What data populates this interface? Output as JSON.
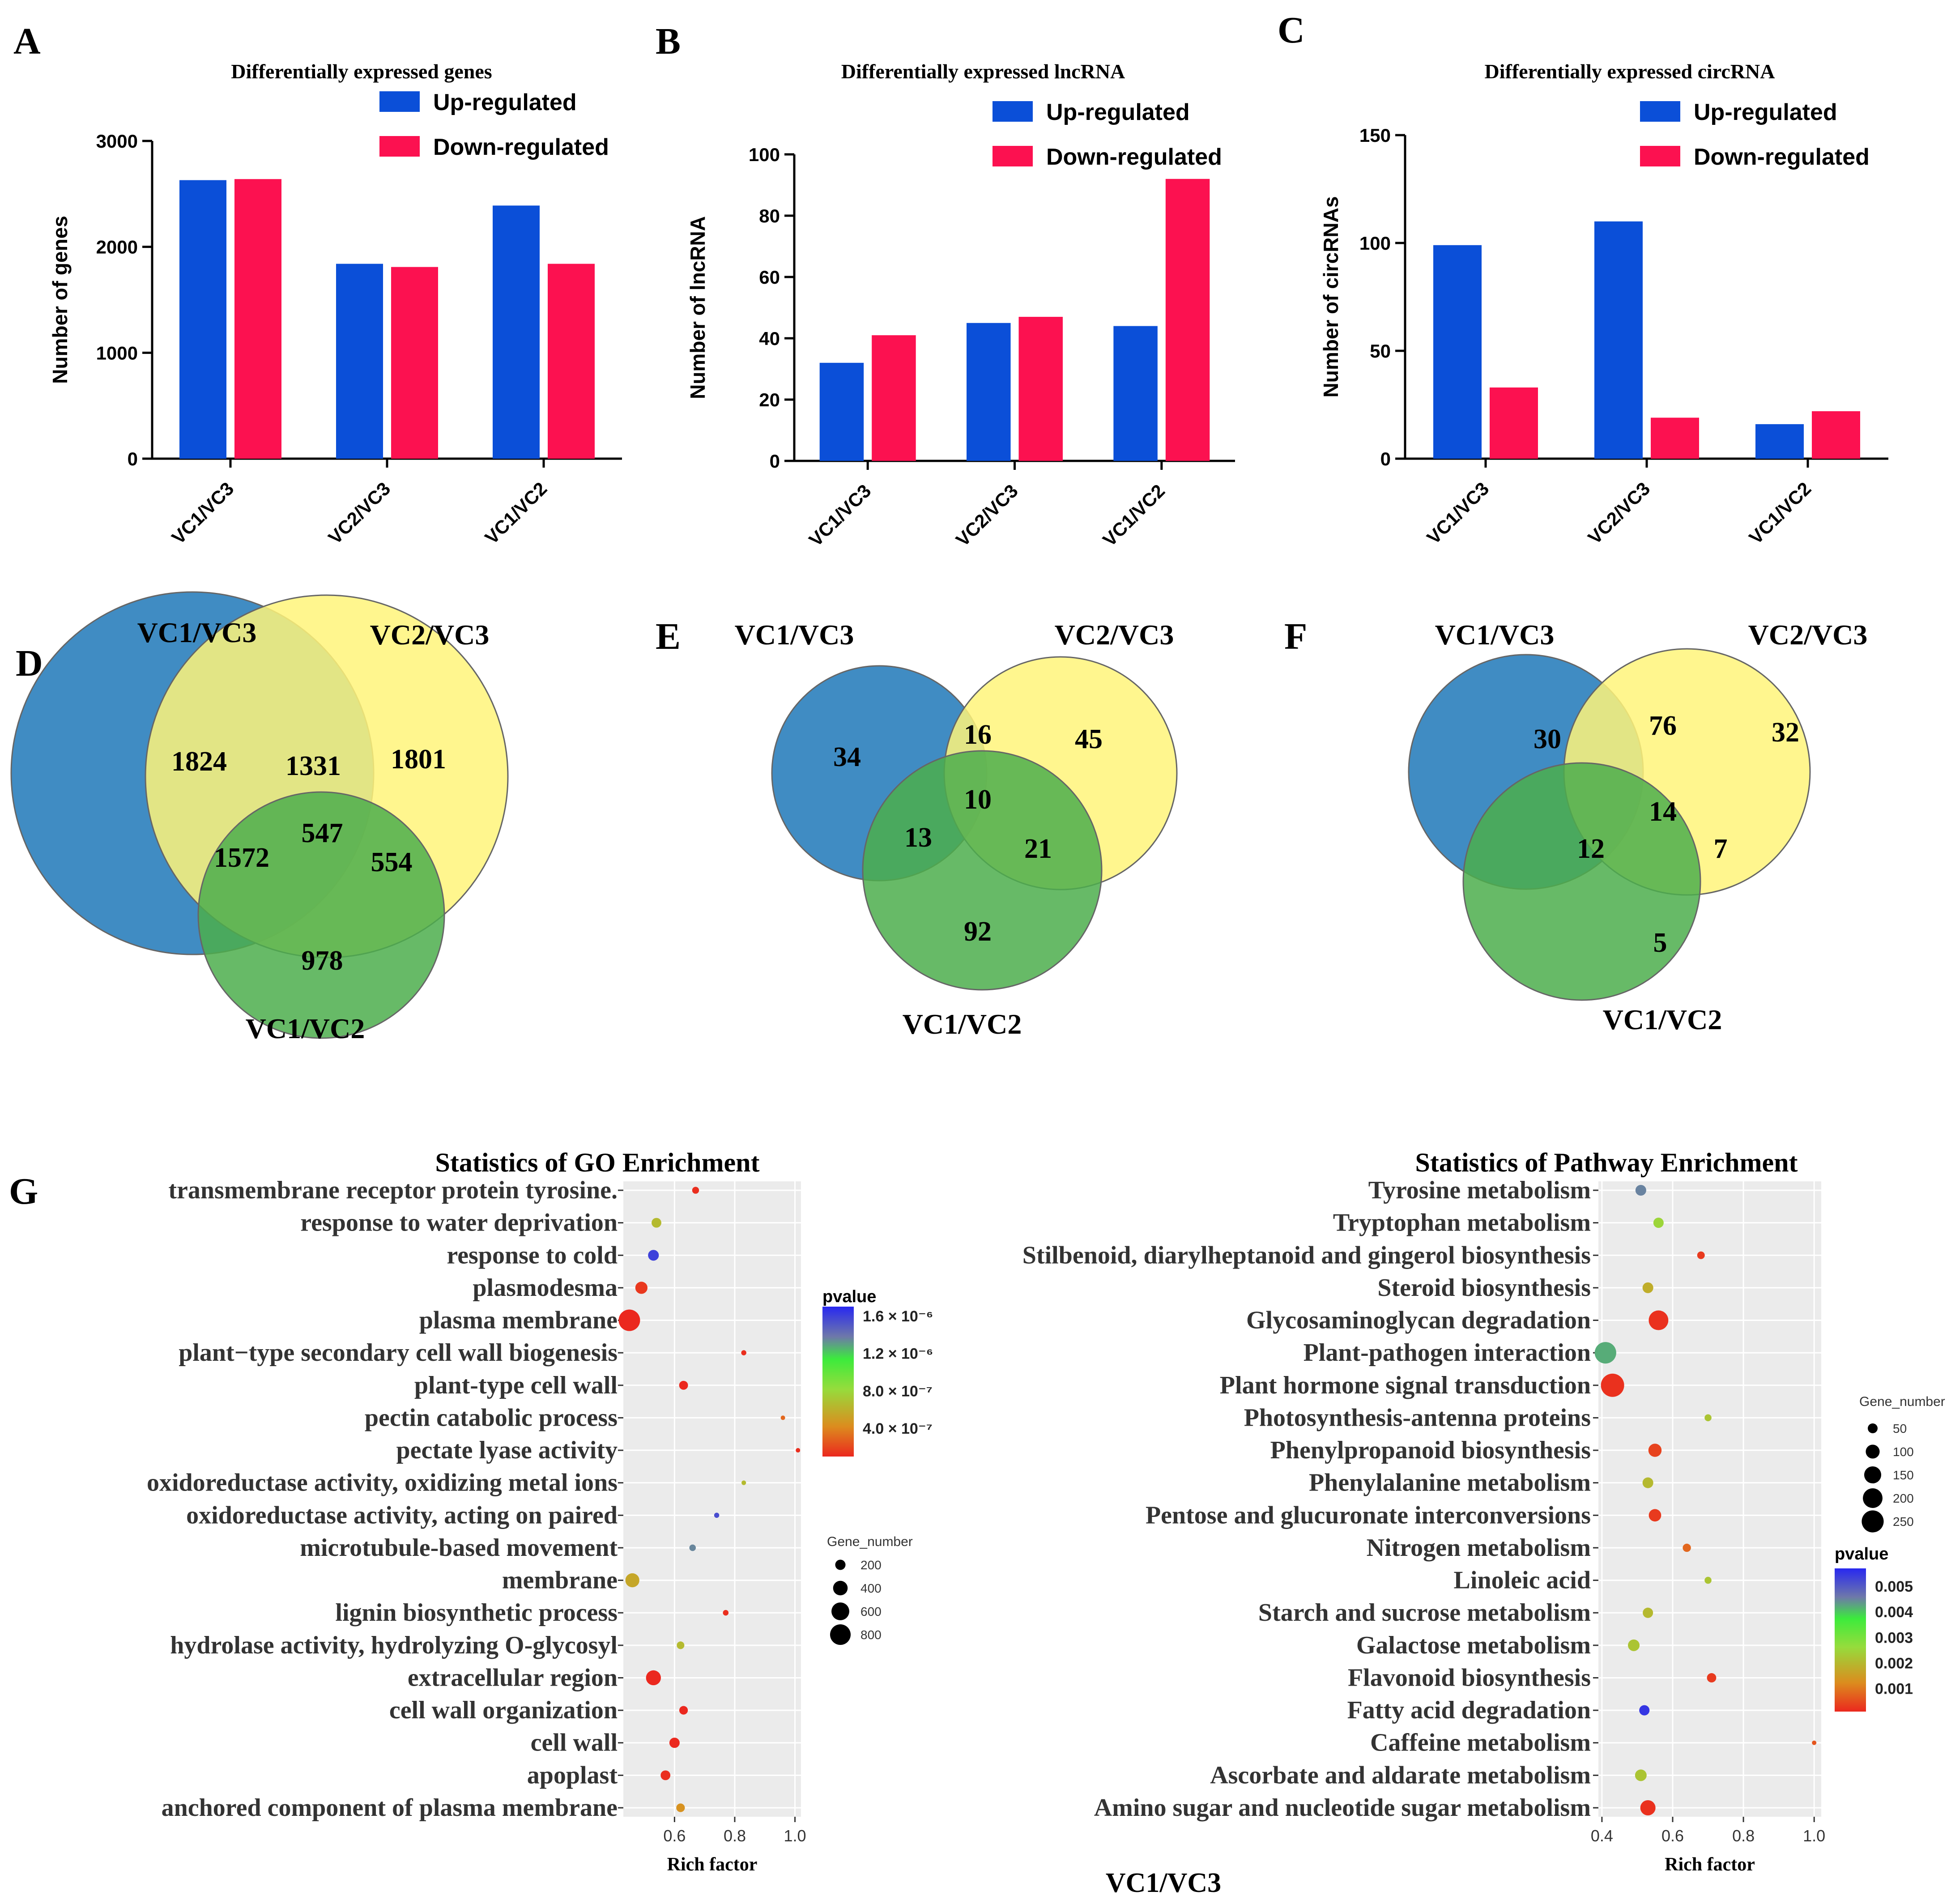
{
  "figure_caption": "VC1/VC3",
  "colors": {
    "up": "#0B4FD8",
    "down": "#FC1150",
    "venn_blue": "#1F78B8",
    "venn_yellow": "#FFF47A",
    "venn_green": "#4CAE4C",
    "panel_bg": "#EBEBEB",
    "grid": "#FFFFFF"
  },
  "chart_data": [
    {
      "panel": "A",
      "type": "bar",
      "title": "Differentially expressed genes",
      "ylabel": "Number of genes",
      "xlabel": "",
      "categories": [
        "VC1/VC3",
        "VC2/VC3",
        "VC1/VC2"
      ],
      "series": [
        {
          "name": "Up-regulated",
          "values": [
            2630,
            1840,
            2390
          ]
        },
        {
          "name": "Down-regulated",
          "values": [
            2640,
            1810,
            1840
          ]
        }
      ],
      "ylim": [
        0,
        3000
      ],
      "yticks": [
        "0",
        "1000",
        "2000",
        "3000"
      ],
      "legend": "top-right"
    },
    {
      "panel": "B",
      "type": "bar",
      "title": "Differentially expressed lncRNA",
      "ylabel": "Number of lncRNA",
      "xlabel": "",
      "categories": [
        "VC1/VC3",
        "VC2/VC3",
        "VC1/VC2"
      ],
      "series": [
        {
          "name": "Up-regulated",
          "values": [
            32,
            45,
            44
          ]
        },
        {
          "name": "Down-regulated",
          "values": [
            41,
            47,
            92
          ]
        }
      ],
      "ylim": [
        0,
        100
      ],
      "yticks": [
        "0",
        "20",
        "40",
        "60",
        "80",
        "100"
      ],
      "legend": "top-right"
    },
    {
      "panel": "C",
      "type": "bar",
      "title": "Differentially expressed circRNA",
      "ylabel": "Number of circRNAs",
      "xlabel": "",
      "categories": [
        "VC1/VC3",
        "VC2/VC3",
        "VC1/VC2"
      ],
      "series": [
        {
          "name": "Up-regulated",
          "values": [
            99,
            110,
            16
          ]
        },
        {
          "name": "Down-regulated",
          "values": [
            33,
            19,
            22
          ]
        }
      ],
      "ylim": [
        0,
        150
      ],
      "yticks": [
        "0",
        "50",
        "100",
        "150"
      ],
      "legend": "top-right"
    },
    {
      "panel": "D",
      "type": "venn",
      "sets": [
        "VC1/VC3",
        "VC2/VC3",
        "VC1/VC2"
      ],
      "regions": {
        "a_only": "1824",
        "b_only": "1801",
        "c_only": "978",
        "ab": "1331",
        "ac": "1572",
        "bc": "554",
        "abc": "547"
      }
    },
    {
      "panel": "E",
      "type": "venn",
      "sets": [
        "VC1/VC3",
        "VC2/VC3",
        "VC1/VC2"
      ],
      "regions": {
        "a_only": "34",
        "b_only": "45",
        "c_only": "92",
        "ab": "16",
        "ac": "13",
        "bc": "21",
        "abc": "10"
      }
    },
    {
      "panel": "F",
      "type": "venn",
      "sets": [
        "VC1/VC3",
        "VC2/VC3",
        "VC1/VC2"
      ],
      "regions": {
        "a_only": "30",
        "b_only": "32",
        "c_only": "5",
        "ab": "76",
        "ac": "12",
        "bc": "7",
        "abc": "14"
      }
    },
    {
      "panel": "G",
      "type": "scatter",
      "title": "Statistics of GO Enrichment",
      "xlabel": "Rich factor",
      "xlim": [
        0.43,
        1.02
      ],
      "xticks": [
        0.6,
        0.8,
        1.0
      ],
      "xtick_labels": [
        "0.6",
        "0.8",
        "1.0"
      ],
      "categories": [
        "transmembrane receptor protein tyrosine.",
        "response to water deprivation",
        "response to cold",
        "plasmodesma",
        "plasma membrane",
        "plant−type secondary cell wall biogenesis",
        "plant-type cell wall",
        "pectin catabolic process",
        "pectate lyase activity",
        "oxidoreductase activity, oxidizing metal ions",
        "oxidoreductase activity, acting on paired",
        "microtubule-based movement",
        "membrane",
        "lignin biosynthetic process",
        "hydrolase activity, hydrolyzing O-glycosyl",
        "extracellular region",
        "cell wall organization",
        "cell wall",
        "apoplast",
        "anchored component of plasma membrane"
      ],
      "points": [
        {
          "x": 0.67,
          "size": 90,
          "pvalue": 1.2e-07
        },
        {
          "x": 0.54,
          "size": 180,
          "pvalue": 6.5e-07
        },
        {
          "x": 0.53,
          "size": 220,
          "pvalue": 1.6e-06
        },
        {
          "x": 0.49,
          "size": 280,
          "pvalue": 1.5e-07
        },
        {
          "x": 0.45,
          "size": 870,
          "pvalue": 1e-07
        },
        {
          "x": 0.83,
          "size": 50,
          "pvalue": 1.2e-07
        },
        {
          "x": 0.63,
          "size": 150,
          "pvalue": 1e-07
        },
        {
          "x": 0.96,
          "size": 20,
          "pvalue": 3e-07
        },
        {
          "x": 1.01,
          "size": 12,
          "pvalue": 1.2e-07
        },
        {
          "x": 0.83,
          "size": 40,
          "pvalue": 6.5e-07
        },
        {
          "x": 0.74,
          "size": 50,
          "pvalue": 1.55e-06
        },
        {
          "x": 0.66,
          "size": 80,
          "pvalue": 1.35e-06
        },
        {
          "x": 0.46,
          "size": 370,
          "pvalue": 5.5e-07
        },
        {
          "x": 0.77,
          "size": 60,
          "pvalue": 1.2e-07
        },
        {
          "x": 0.62,
          "size": 110,
          "pvalue": 6.5e-07
        },
        {
          "x": 0.53,
          "size": 420,
          "pvalue": 1e-07
        },
        {
          "x": 0.63,
          "size": 140,
          "pvalue": 1e-07
        },
        {
          "x": 0.6,
          "size": 200,
          "pvalue": 1e-07
        },
        {
          "x": 0.57,
          "size": 180,
          "pvalue": 1.2e-07
        },
        {
          "x": 0.62,
          "size": 140,
          "pvalue": 4.5e-07
        }
      ],
      "color_legend": {
        "title": "pvalue",
        "labels": [
          "1.6 × 10⁻⁶",
          "1.2 × 10⁻⁶",
          "8.0 × 10⁻⁷",
          "4.0 × 10⁻⁷"
        ],
        "values": [
          1.6e-06,
          1.2e-06,
          8e-07,
          4e-07
        ],
        "range": [
          1e-07,
          1.7e-06
        ]
      },
      "size_legend": {
        "title": "Gene_number",
        "values": [
          200,
          400,
          600,
          800
        ],
        "labels": [
          "200",
          "400",
          "600",
          "800"
        ],
        "max": 870
      }
    },
    {
      "panel": "G2",
      "type": "scatter",
      "title": "Statistics of Pathway Enrichment",
      "xlabel": "Rich factor",
      "xlim": [
        0.39,
        1.02
      ],
      "xticks": [
        0.4,
        0.6,
        0.8,
        1.0
      ],
      "xtick_labels": [
        "0.4",
        "0.6",
        "0.8",
        "1.0"
      ],
      "categories": [
        "Tyrosine metabolism",
        "Tryptophan metabolism",
        "Stilbenoid, diarylheptanoid and gingerol biosynthesis",
        "Steroid biosynthesis",
        "Glycosaminoglycan degradation",
        "Plant-pathogen interaction",
        "Plant hormone signal transduction",
        "Photosynthesis-antenna proteins",
        "Phenylpropanoid biosynthesis",
        "Phenylalanine metabolism",
        "Pentose and glucuronate interconversions",
        "Nitrogen metabolism",
        "Linoleic acid",
        "Starch and sucrose metabolism",
        "Galactose metabolism",
        "Flavonoid biosynthesis",
        "Fatty acid degradation",
        "Caffeine metabolism",
        "Ascorbate and aldarate metabolism",
        "Amino sugar and nucleotide sugar metabolism"
      ],
      "points": [
        {
          "x": 0.51,
          "size": 60,
          "pvalue": 0.0045
        },
        {
          "x": 0.56,
          "size": 55,
          "pvalue": 0.0025
        },
        {
          "x": 0.68,
          "size": 30,
          "pvalue": 0.0003
        },
        {
          "x": 0.53,
          "size": 60,
          "pvalue": 0.0018
        },
        {
          "x": 0.56,
          "size": 200,
          "pvalue": 0.0002
        },
        {
          "x": 0.41,
          "size": 240,
          "pvalue": 0.0042
        },
        {
          "x": 0.43,
          "size": 280,
          "pvalue": 0.0002
        },
        {
          "x": 0.7,
          "size": 25,
          "pvalue": 0.0022
        },
        {
          "x": 0.55,
          "size": 90,
          "pvalue": 0.0004
        },
        {
          "x": 0.53,
          "size": 60,
          "pvalue": 0.002
        },
        {
          "x": 0.55,
          "size": 80,
          "pvalue": 0.0003
        },
        {
          "x": 0.64,
          "size": 35,
          "pvalue": 0.0008
        },
        {
          "x": 0.7,
          "size": 25,
          "pvalue": 0.0022
        },
        {
          "x": 0.53,
          "size": 55,
          "pvalue": 0.002
        },
        {
          "x": 0.49,
          "size": 70,
          "pvalue": 0.0022
        },
        {
          "x": 0.71,
          "size": 45,
          "pvalue": 0.0003
        },
        {
          "x": 0.52,
          "size": 55,
          "pvalue": 0.0055
        },
        {
          "x": 1.0,
          "size": 10,
          "pvalue": 0.0006
        },
        {
          "x": 0.51,
          "size": 70,
          "pvalue": 0.0022
        },
        {
          "x": 0.53,
          "size": 120,
          "pvalue": 0.0002
        }
      ],
      "color_legend": {
        "title": "pvalue",
        "labels": [
          "0.005",
          "0.004",
          "0.003",
          "0.002",
          "0.001"
        ],
        "values": [
          0.005,
          0.004,
          0.003,
          0.002,
          0.001
        ],
        "range": [
          0.0001,
          0.0057
        ]
      },
      "size_legend": {
        "title": "Gene_number",
        "values": [
          50,
          100,
          150,
          200,
          250
        ],
        "labels": [
          "50",
          "100",
          "150",
          "200",
          "250"
        ],
        "max": 280
      }
    }
  ]
}
